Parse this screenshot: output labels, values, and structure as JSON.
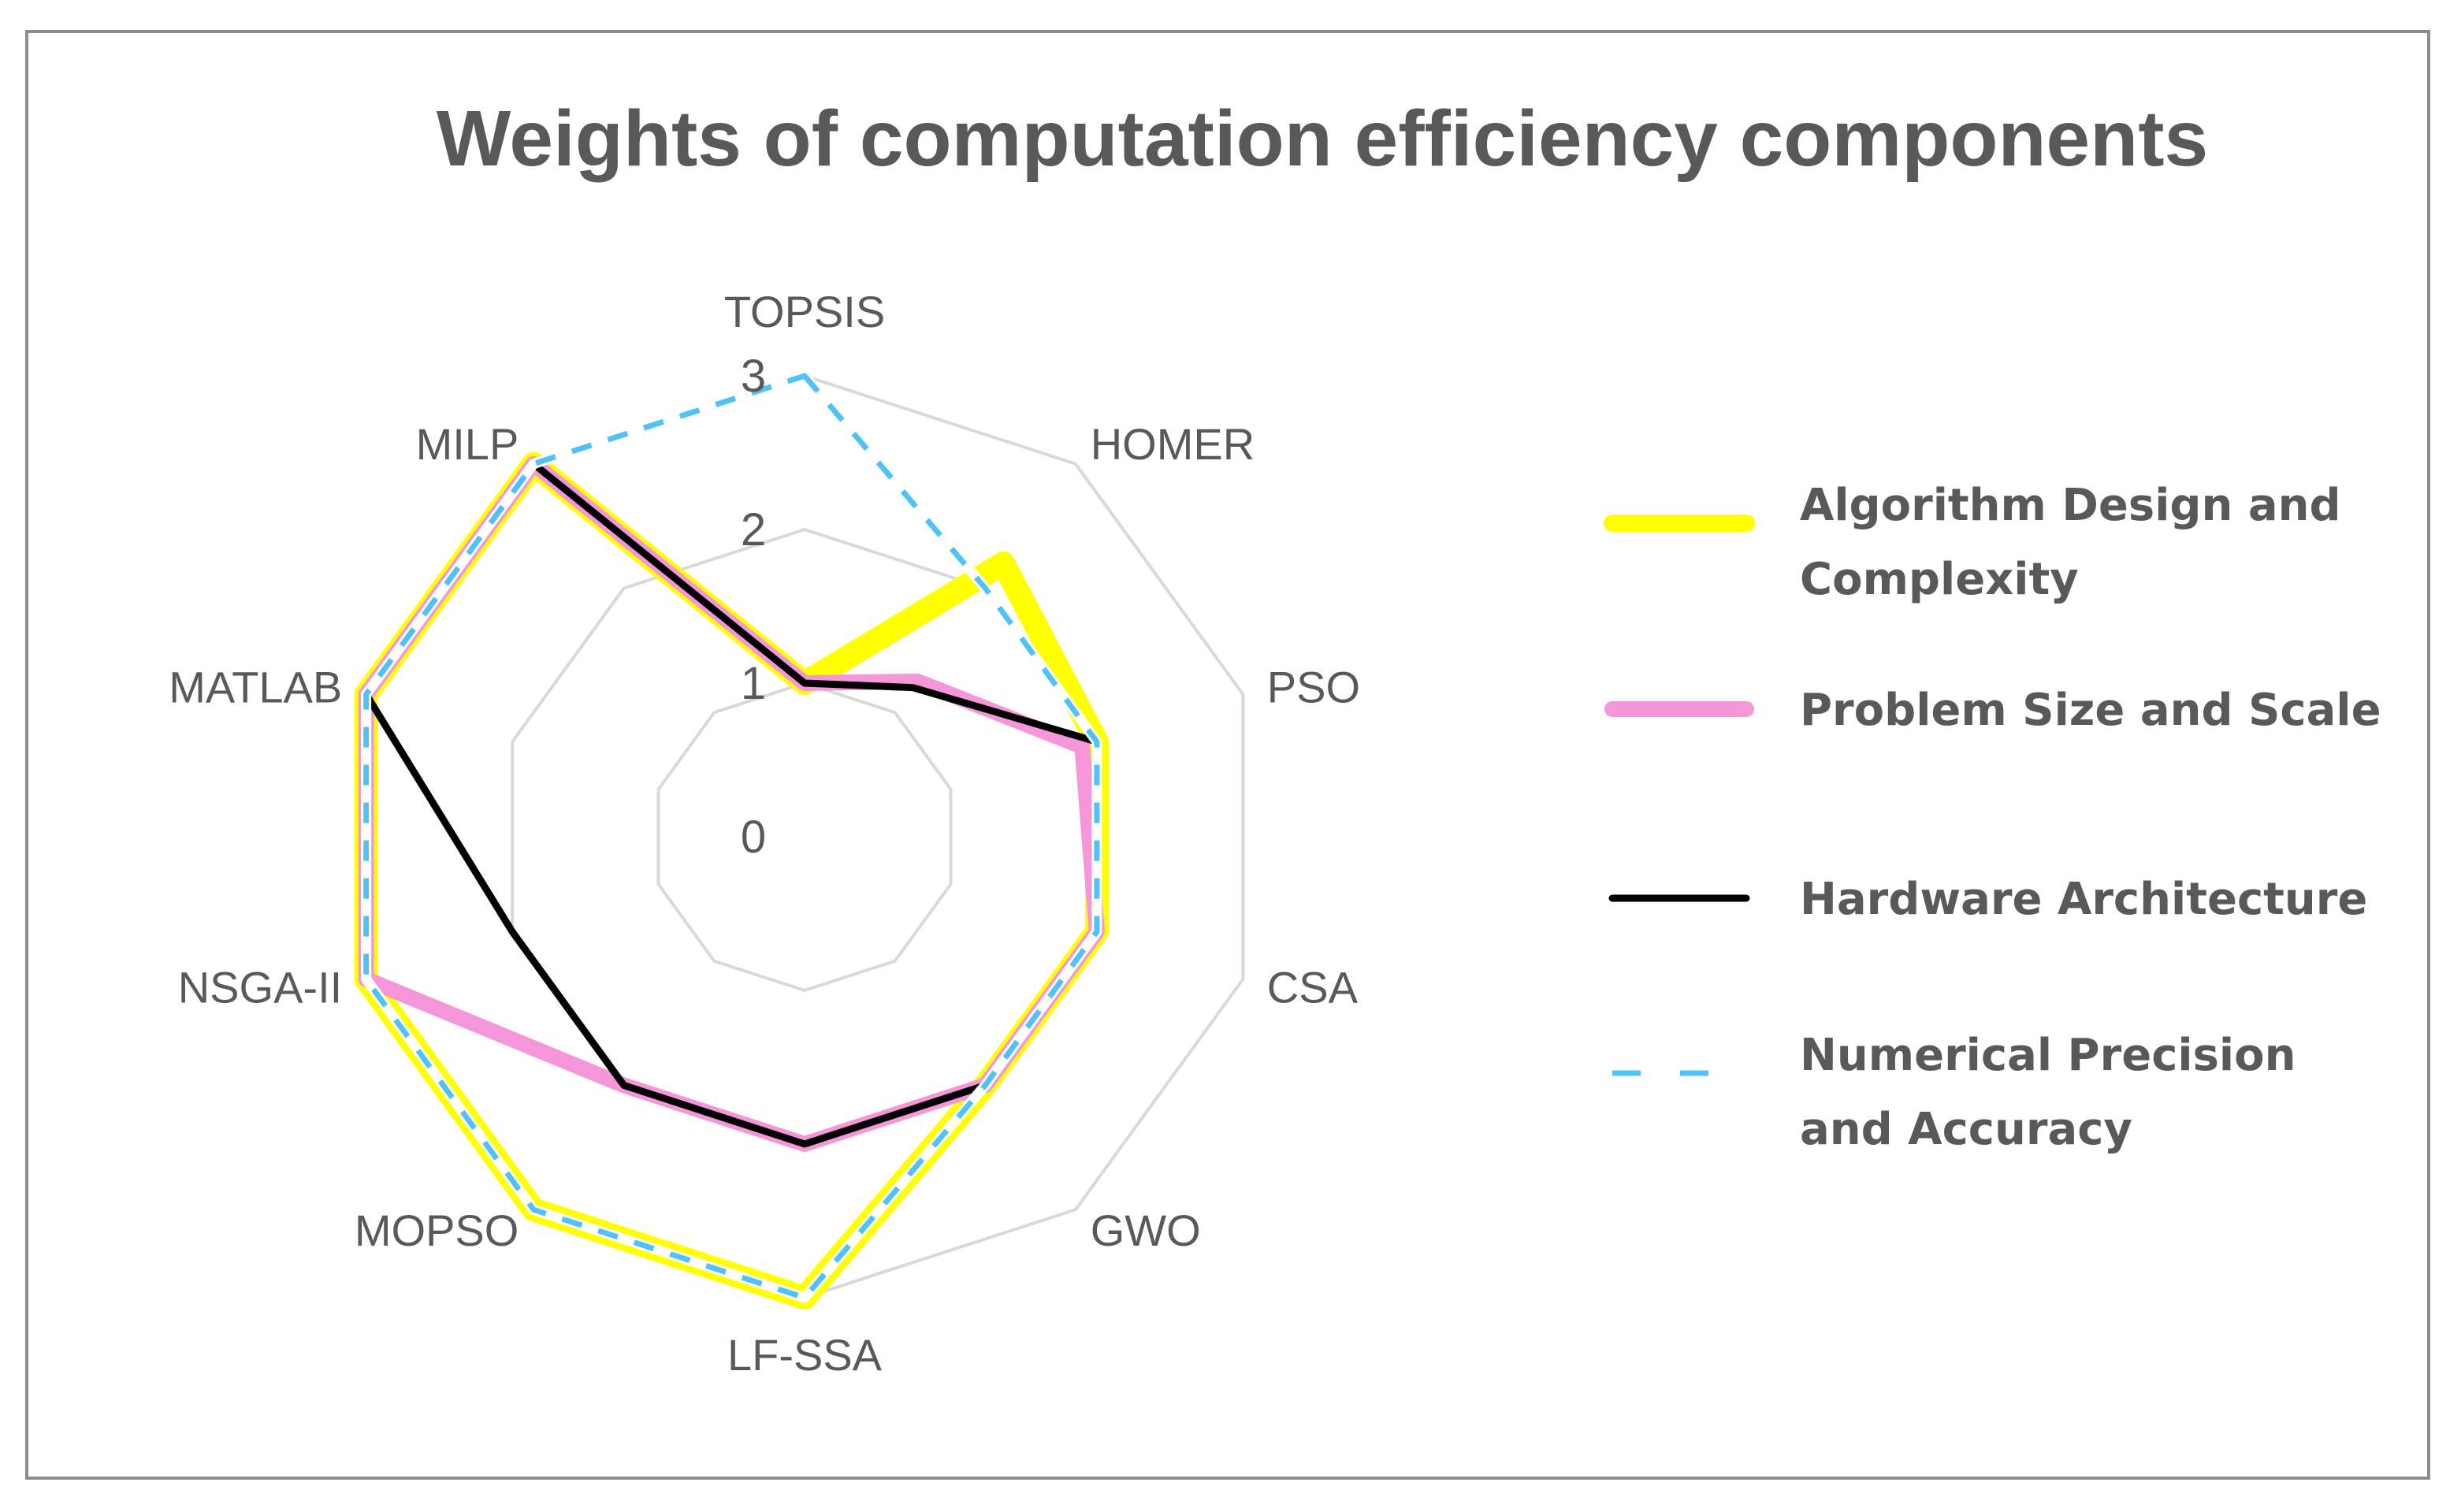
{
  "chart_data": {
    "type": "radar",
    "title": "Weights of computation efficiency components",
    "categories": [
      "TOPSIS",
      "HOMER",
      "PSO",
      "CSA",
      "GWO",
      "LF-SSA",
      "MOPSO",
      "NSGA-II",
      "MATLAB",
      "MILP"
    ],
    "r_range": [
      0,
      3
    ],
    "ticks": [
      "0",
      "1",
      "2",
      "3"
    ],
    "grid": true,
    "legend_position": "right",
    "series": [
      {
        "name": "Algorithm Design and Complexity",
        "color": "#ffff00",
        "style": "thick",
        "values": [
          1,
          2.2,
          2,
          2,
          2,
          3,
          3,
          3,
          3,
          3
        ]
      },
      {
        "name": "Problem Size and Scale",
        "color": "#f596d8",
        "style": "medium",
        "values": [
          1,
          1.25,
          1.9,
          2,
          2,
          2,
          2,
          3,
          3,
          3
        ]
      },
      {
        "name": "Hardware Architecture",
        "color": "#000000",
        "style": "thin",
        "values": [
          1,
          1.2,
          2,
          2,
          2,
          2,
          2,
          2,
          3,
          3
        ]
      },
      {
        "name": "Numerical Precision and Accuracy",
        "color": "#4fc3f7",
        "style": "dashed",
        "values": [
          3,
          2,
          2,
          2,
          2,
          3,
          3,
          3,
          3,
          3
        ]
      }
    ]
  }
}
